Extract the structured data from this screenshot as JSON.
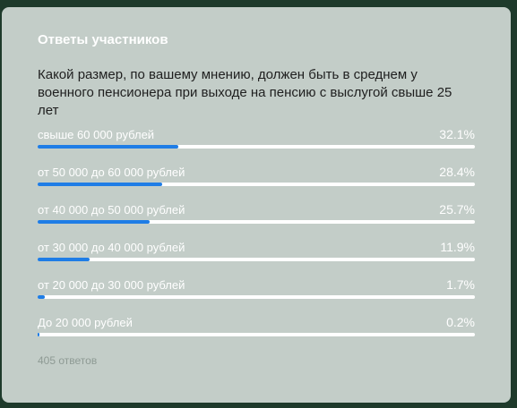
{
  "poll": {
    "title": "Ответы участников",
    "question": "Какой размер, по вашему мнению, должен быть в среднем у военного пенсионера при выходе на пенсию с выслугой свыше 25 лет",
    "options": [
      {
        "label": "свыше 60 000 рублей",
        "percent_text": "32.1%",
        "fraction": 0.321
      },
      {
        "label": "от 50 000 до 60 000 рублей",
        "percent_text": "28.4%",
        "fraction": 0.284
      },
      {
        "label": "от 40 000 до 50 000 рублей",
        "percent_text": "25.7%",
        "fraction": 0.257
      },
      {
        "label": "от 30 000 до 40 000 рублей",
        "percent_text": "11.9%",
        "fraction": 0.119
      },
      {
        "label": "от 20 000 до 30 000 рублей",
        "percent_text": "1.7%",
        "fraction": 0.017
      },
      {
        "label": "До 20 000 рублей",
        "percent_text": "0.2%",
        "fraction": 0.002
      }
    ],
    "response_count": "405 ответов"
  },
  "colors": {
    "card_background": "#c3cdc8",
    "page_background": "#1e3a2b",
    "bar_fill": "#1f7de6",
    "bar_track": "#ffffff"
  }
}
